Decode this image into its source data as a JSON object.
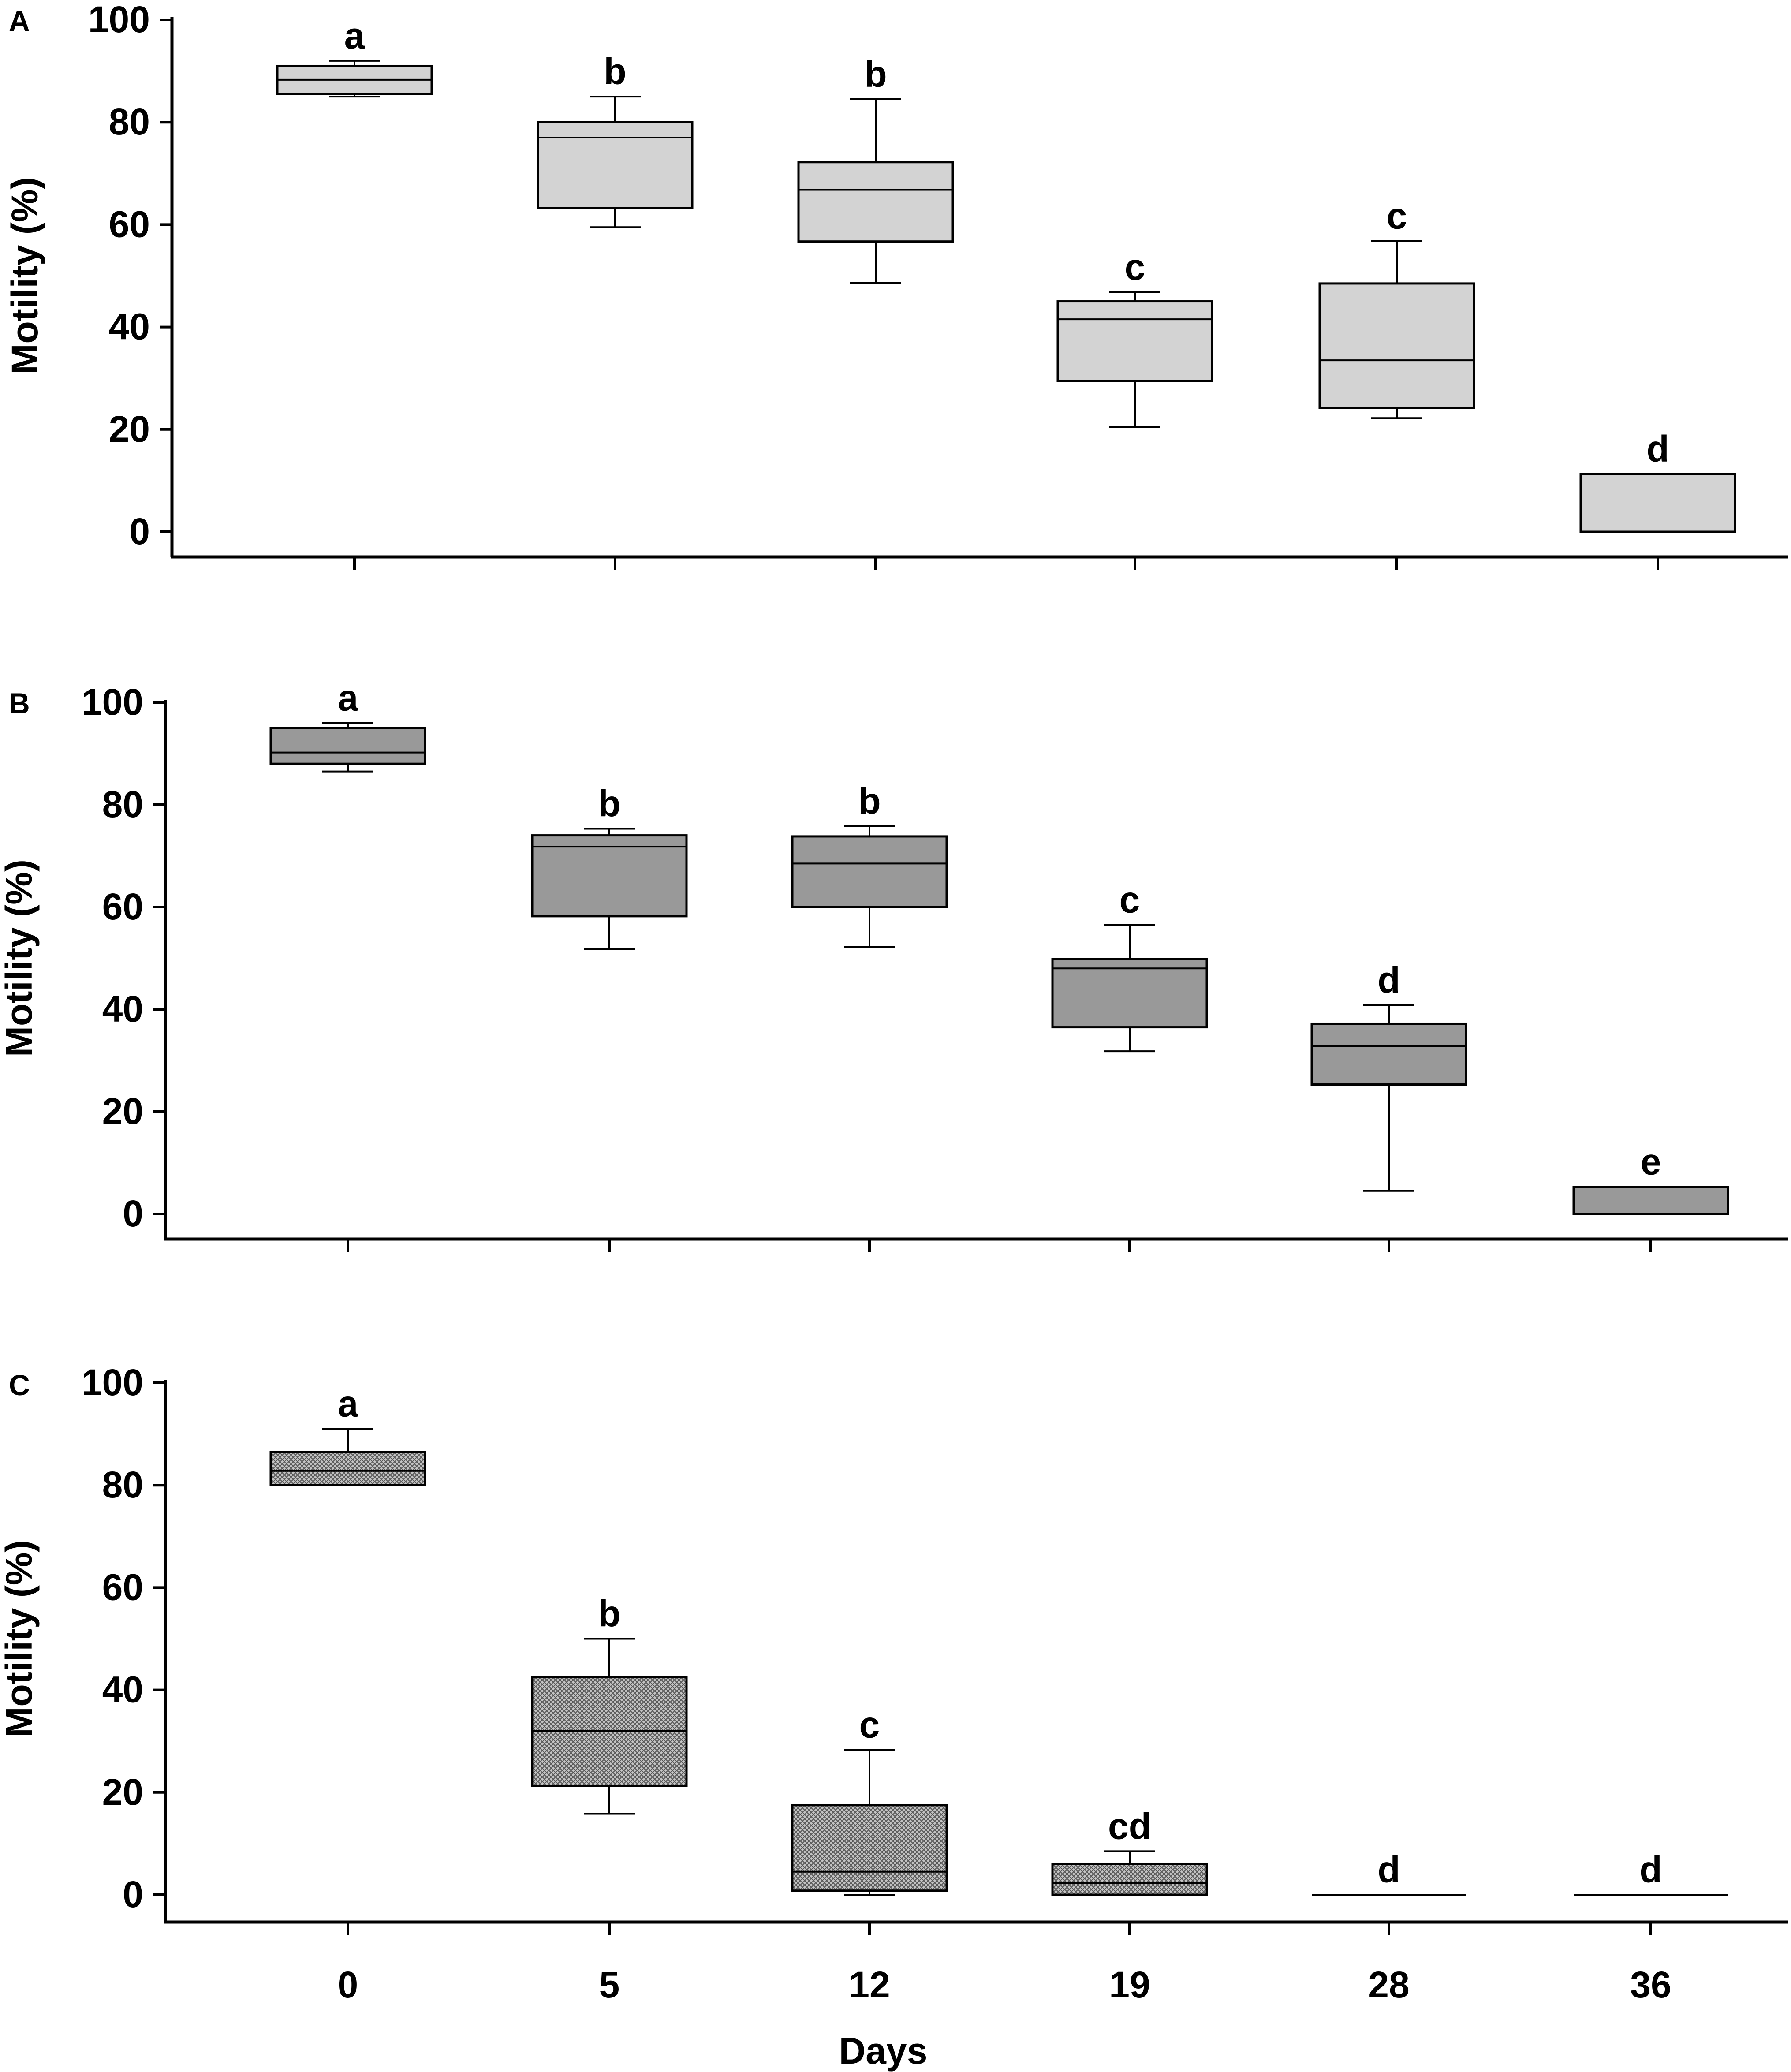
{
  "colors": {
    "panel_a_fill": "#d3d3d3",
    "panel_b_fill": "#999999",
    "panel_c_fill": "#a6a6a6",
    "stroke": "#000000"
  },
  "chart_data": [
    {
      "type": "box",
      "panel_label": "A",
      "fill": "light-gray",
      "ylabel": "Motility (%)",
      "xlabel": "",
      "ylim": [
        0,
        100
      ],
      "yticks": [
        "0",
        "20",
        "40",
        "60",
        "80",
        "100"
      ],
      "categories": [
        "0",
        "5",
        "12",
        "19",
        "28",
        "36"
      ],
      "boxes": [
        {
          "day": "0",
          "whisker_low": 85,
          "q1": 85.5,
          "median": 88.3,
          "q3": 91,
          "whisker_high": 92,
          "letter": "a"
        },
        {
          "day": "5",
          "whisker_low": 59.5,
          "q1": 63.2,
          "median": 77,
          "q3": 80,
          "whisker_high": 85,
          "letter": "b"
        },
        {
          "day": "12",
          "whisker_low": 48.6,
          "q1": 56.7,
          "median": 66.8,
          "q3": 72.2,
          "whisker_high": 84.5,
          "letter": "b"
        },
        {
          "day": "19",
          "whisker_low": 20.5,
          "q1": 29.5,
          "median": 41.5,
          "q3": 45,
          "whisker_high": 46.8,
          "letter": "c"
        },
        {
          "day": "28",
          "whisker_low": 22.2,
          "q1": 24.2,
          "median": 33.5,
          "q3": 48.5,
          "whisker_high": 56.8,
          "letter": "c"
        },
        {
          "day": "36",
          "whisker_low": 0,
          "q1": 0,
          "median": 0,
          "q3": 11.3,
          "whisker_high": 11.3,
          "letter": "d"
        }
      ]
    },
    {
      "type": "box",
      "panel_label": "B",
      "fill": "medium-gray",
      "ylabel": "Motility (%)",
      "xlabel": "",
      "ylim": [
        0,
        100
      ],
      "yticks": [
        "0",
        "20",
        "40",
        "60",
        "80",
        "100"
      ],
      "categories": [
        "0",
        "5",
        "12",
        "19",
        "28",
        "36"
      ],
      "boxes": [
        {
          "day": "0",
          "whisker_low": 86.5,
          "q1": 88,
          "median": 90.2,
          "q3": 95,
          "whisker_high": 96,
          "letter": "a"
        },
        {
          "day": "5",
          "whisker_low": 51.8,
          "q1": 58.2,
          "median": 71.8,
          "q3": 74,
          "whisker_high": 75.3,
          "letter": "b"
        },
        {
          "day": "12",
          "whisker_low": 52.2,
          "q1": 60,
          "median": 68.5,
          "q3": 73.8,
          "whisker_high": 75.8,
          "letter": "b"
        },
        {
          "day": "19",
          "whisker_low": 31.8,
          "q1": 36.5,
          "median": 48,
          "q3": 49.8,
          "whisker_high": 56.5,
          "letter": "c"
        },
        {
          "day": "28",
          "whisker_low": 4.5,
          "q1": 25.3,
          "median": 32.8,
          "q3": 37.2,
          "whisker_high": 40.8,
          "letter": "d"
        },
        {
          "day": "36",
          "whisker_low": 0,
          "q1": 0,
          "median": 0,
          "q3": 5.3,
          "whisker_high": 5.3,
          "letter": "e"
        }
      ]
    },
    {
      "type": "box",
      "panel_label": "C",
      "fill": "crosshatch",
      "ylabel": "Motility (%)",
      "xlabel": "Days",
      "ylim": [
        0,
        100
      ],
      "yticks": [
        "0",
        "20",
        "40",
        "60",
        "80",
        "100"
      ],
      "categories": [
        "0",
        "5",
        "12",
        "19",
        "28",
        "36"
      ],
      "boxes": [
        {
          "day": "0",
          "whisker_low": 80,
          "q1": 80,
          "median": 82.8,
          "q3": 86.5,
          "whisker_high": 91,
          "letter": "a"
        },
        {
          "day": "5",
          "whisker_low": 15.8,
          "q1": 21.3,
          "median": 32,
          "q3": 42.5,
          "whisker_high": 50,
          "letter": "b"
        },
        {
          "day": "12",
          "whisker_low": 0,
          "q1": 0.8,
          "median": 4.5,
          "q3": 17.5,
          "whisker_high": 28.3,
          "letter": "c"
        },
        {
          "day": "19",
          "whisker_low": 0,
          "q1": 0,
          "median": 2.3,
          "q3": 6,
          "whisker_high": 8.5,
          "letter": "cd"
        },
        {
          "day": "28",
          "whisker_low": 0,
          "q1": 0,
          "median": 0,
          "q3": 0,
          "whisker_high": 0,
          "letter": "d"
        },
        {
          "day": "36",
          "whisker_low": 0,
          "q1": 0,
          "median": 0,
          "q3": 0,
          "whisker_high": 0,
          "letter": "d"
        }
      ]
    }
  ]
}
